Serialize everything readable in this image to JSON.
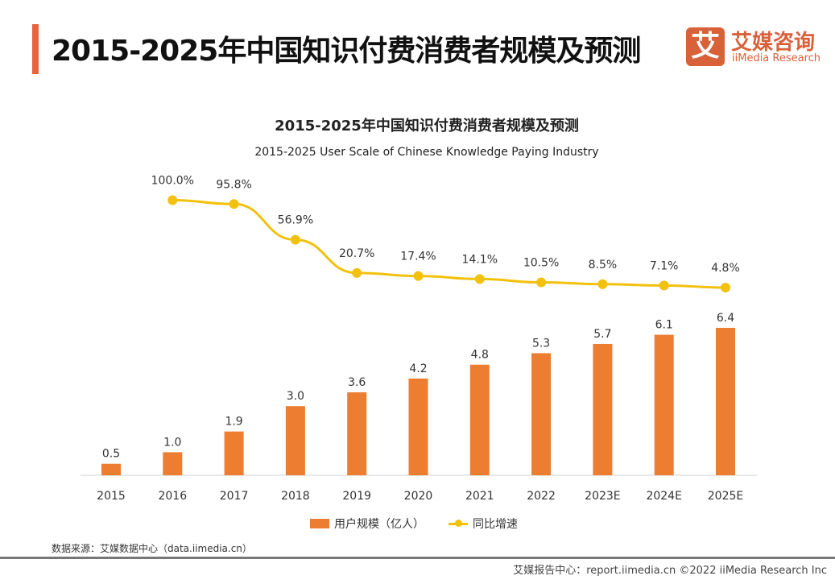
{
  "header": {
    "title": "2015-2025年中国知识付费消费者规模及预测",
    "logo_icon_text": "艾",
    "logo_cn": "艾媒咨询",
    "logo_en": "iiMedia Research"
  },
  "chart_data": {
    "type": "bar+line",
    "title": "2015-2025年中国知识付费消费者规模及预测",
    "subtitle": "2015-2025 User Scale of Chinese Knowledge Paying Industry",
    "categories": [
      "2015",
      "2016",
      "2017",
      "2018",
      "2019",
      "2020",
      "2021",
      "2022",
      "2023E",
      "2024E",
      "2025E"
    ],
    "series": [
      {
        "name": "用户规模（亿人）",
        "type": "bar",
        "color": "#ed7d31",
        "values": [
          0.5,
          1.0,
          1.9,
          3.0,
          3.6,
          4.2,
          4.8,
          5.3,
          5.7,
          6.1,
          6.4
        ],
        "labels": [
          "0.5",
          "1.0",
          "1.9",
          "3.0",
          "3.6",
          "4.2",
          "4.8",
          "5.3",
          "5.7",
          "6.1",
          "6.4"
        ]
      },
      {
        "name": "同比增速",
        "type": "line",
        "color": "#f2c10e",
        "values": [
          null,
          100.0,
          95.8,
          56.9,
          20.7,
          17.4,
          14.1,
          10.5,
          8.5,
          7.1,
          4.8
        ],
        "labels": [
          null,
          "100.0%",
          "95.8%",
          "56.9%",
          "20.7%",
          "17.4%",
          "14.1%",
          "10.5%",
          "8.5%",
          "7.1%",
          "4.8%"
        ]
      }
    ],
    "legend": "bottom",
    "grid": false
  },
  "footer": {
    "source": "数据来源：艾媒数据中心（data.iimedia.cn）",
    "right": "艾媒报告中心：report.iimedia.cn   ©2022  iiMedia Research  Inc"
  }
}
